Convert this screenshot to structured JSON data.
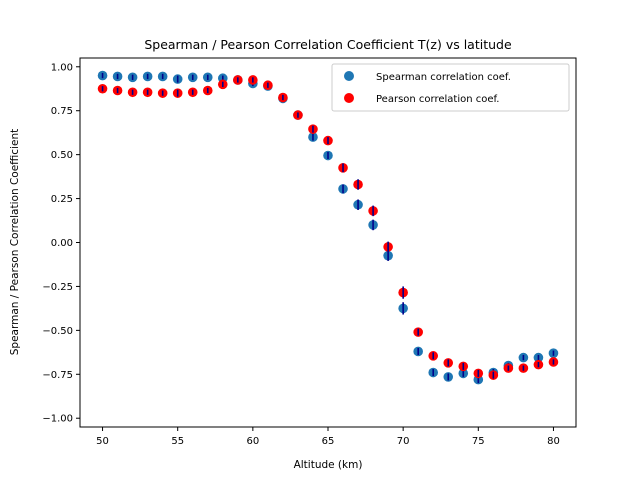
{
  "chart_data": {
    "type": "scatter",
    "title": "Spearman / Pearson Correlation Coefficient T(z) vs latitude",
    "xlabel": "Altitude (km)",
    "ylabel": "Spearman / Pearson Correlation Coefficient",
    "xlim": [
      48.5,
      81.5
    ],
    "ylim": [
      -1.05,
      1.05
    ],
    "xticks": [
      50,
      55,
      60,
      65,
      70,
      75,
      80
    ],
    "yticks": [
      -1.0,
      -0.75,
      -0.5,
      -0.25,
      0.0,
      0.25,
      0.5,
      0.75,
      1.0
    ],
    "ytick_labels": [
      "−1.00",
      "−0.75",
      "−0.50",
      "−0.25",
      "0.00",
      "0.25",
      "0.50",
      "0.75",
      "1.00"
    ],
    "grid": false,
    "legend_position": "upper right",
    "x": [
      50,
      51,
      52,
      53,
      54,
      55,
      56,
      57,
      58,
      59,
      60,
      61,
      62,
      63,
      64,
      65,
      66,
      67,
      68,
      69,
      70,
      71,
      72,
      73,
      74,
      75,
      76,
      77,
      78,
      79,
      80
    ],
    "series": [
      {
        "name": "Spearman correlation coef.",
        "color": "#1f77b4",
        "errorbar_color": "#00008b",
        "values": [
          0.95,
          0.945,
          0.94,
          0.945,
          0.945,
          0.93,
          0.94,
          0.94,
          0.935,
          0.925,
          0.905,
          0.89,
          0.82,
          0.725,
          0.6,
          0.495,
          0.305,
          0.215,
          0.1,
          -0.075,
          -0.375,
          -0.62,
          -0.74,
          -0.765,
          -0.745,
          -0.78,
          -0.74,
          -0.7,
          -0.655,
          -0.655,
          -0.63
        ],
        "errors": [
          0.015,
          0.015,
          0.015,
          0.015,
          0.015,
          0.02,
          0.015,
          0.015,
          0.015,
          0.015,
          0.015,
          0.015,
          0.015,
          0.015,
          0.02,
          0.02,
          0.025,
          0.03,
          0.03,
          0.03,
          0.035,
          0.02,
          0.02,
          0.02,
          0.02,
          0.02,
          0.02,
          0.015,
          0.015,
          0.015,
          0.015
        ]
      },
      {
        "name": "Pearson correlation coef.",
        "color": "#ff0000",
        "errorbar_color": "#00008b",
        "values": [
          0.875,
          0.865,
          0.855,
          0.855,
          0.85,
          0.85,
          0.855,
          0.865,
          0.9,
          0.925,
          0.925,
          0.895,
          0.825,
          0.725,
          0.645,
          0.58,
          0.425,
          0.33,
          0.18,
          -0.025,
          -0.285,
          -0.51,
          -0.645,
          -0.685,
          -0.705,
          -0.745,
          -0.755,
          -0.715,
          -0.715,
          -0.695,
          -0.68
        ],
        "errors": [
          0.015,
          0.015,
          0.015,
          0.015,
          0.015,
          0.02,
          0.015,
          0.015,
          0.015,
          0.015,
          0.015,
          0.015,
          0.015,
          0.015,
          0.02,
          0.02,
          0.025,
          0.03,
          0.03,
          0.03,
          0.035,
          0.02,
          0.02,
          0.02,
          0.02,
          0.02,
          0.02,
          0.015,
          0.015,
          0.015,
          0.015
        ]
      }
    ]
  }
}
